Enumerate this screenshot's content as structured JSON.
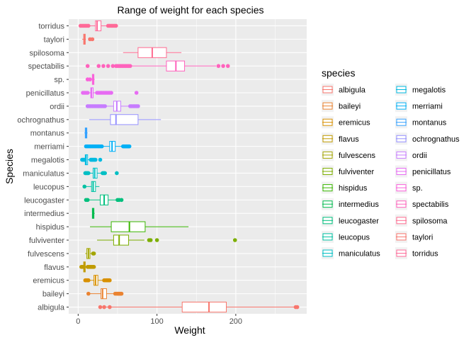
{
  "chart_data": {
    "type": "boxplot",
    "title": "Range of weight for each species",
    "xlabel": "Weight",
    "ylabel": "Species",
    "xlim": [
      -12,
      290
    ],
    "xticks": [
      0,
      100,
      200
    ],
    "grid": true,
    "legend_title": "species",
    "legend_placement": "right",
    "categories": [
      "albigula",
      "baileyi",
      "eremicus",
      "flavus",
      "fulvescens",
      "fulviventer",
      "hispidus",
      "intermedius",
      "leucogaster",
      "leucopus",
      "maniculatus",
      "megalotis",
      "merriami",
      "montanus",
      "ochrognathus",
      "ordii",
      "penicillatus",
      "sp.",
      "spectabilis",
      "spilosoma",
      "taylori",
      "torridus"
    ],
    "colors": [
      "#F8766D",
      "#EA8331",
      "#D89000",
      "#C09B00",
      "#A3A500",
      "#7CAE00",
      "#39B600",
      "#00BB4E",
      "#00BF7D",
      "#00C1A3",
      "#00BFC4",
      "#00BAE0",
      "#00B0F6",
      "#35A2FF",
      "#9590FF",
      "#C77CFF",
      "#E76BF3",
      "#FA62DB",
      "#FF62BC",
      "#FF6C91",
      "#F8766D",
      "#FF6A98"
    ],
    "boxes": [
      {
        "species": "albigula",
        "whisker_low": 30,
        "q1": 132,
        "median": 166,
        "q3": 188,
        "whisker_high": 275,
        "outliers": [
          28,
          33,
          40,
          276,
          278
        ]
      },
      {
        "species": "baileyi",
        "whisker_low": 13,
        "q1": 29,
        "median": 31,
        "q3": 36,
        "whisker_high": 48,
        "outliers": [
          13,
          47,
          49,
          50,
          51,
          52,
          53,
          54,
          55
        ]
      },
      {
        "species": "eremicus",
        "whisker_low": 9,
        "q1": 20,
        "median": 22,
        "q3": 25,
        "whisker_high": 33,
        "outliers": [
          9,
          10,
          11,
          12,
          13,
          33,
          35,
          36,
          37,
          38,
          39,
          40
        ]
      },
      {
        "species": "flavus",
        "whisker_low": 4,
        "q1": 7,
        "median": 8,
        "q3": 9,
        "whisker_high": 12,
        "outliers": [
          4,
          5,
          6,
          12,
          13,
          14,
          15,
          16,
          17,
          18,
          19,
          20
        ]
      },
      {
        "species": "fulvescens",
        "whisker_low": 9,
        "q1": 11,
        "median": 13,
        "q3": 15,
        "whisker_high": 17,
        "outliers": [
          19,
          20
        ]
      },
      {
        "species": "fulviventer",
        "whisker_low": 24,
        "q1": 45,
        "median": 52,
        "q3": 64,
        "whisker_high": 84,
        "outliers": [
          90,
          92,
          100,
          199
        ]
      },
      {
        "species": "hispidus",
        "whisker_low": 15,
        "q1": 42,
        "median": 65,
        "q3": 85,
        "whisker_high": 140,
        "outliers": []
      },
      {
        "species": "intermedius",
        "whisker_low": 18,
        "q1": 18,
        "median": 19,
        "q3": 20,
        "whisker_high": 21,
        "outliers": []
      },
      {
        "species": "leucogaster",
        "whisker_low": 11,
        "q1": 28,
        "median": 33,
        "q3": 38,
        "whisker_high": 49,
        "outliers": [
          10,
          12,
          50,
          52,
          55
        ]
      },
      {
        "species": "leucopus",
        "whisker_low": 8,
        "q1": 17,
        "median": 19,
        "q3": 22,
        "whisker_high": 27,
        "outliers": [
          8
        ]
      },
      {
        "species": "maniculatus",
        "whisker_low": 13,
        "q1": 19,
        "median": 21,
        "q3": 24,
        "whisker_high": 31,
        "outliers": [
          9,
          10,
          11,
          12,
          13,
          31,
          32,
          33,
          34,
          49
        ]
      },
      {
        "species": "megalotis",
        "whisker_low": 5,
        "q1": 9,
        "median": 10,
        "q3": 12,
        "whisker_high": 16,
        "outliers": [
          5,
          6,
          7,
          8,
          16,
          17,
          18,
          19,
          20,
          21,
          22,
          28
        ]
      },
      {
        "species": "merriami",
        "whisker_low": 30,
        "q1": 40,
        "median": 43,
        "q3": 47,
        "whisker_high": 56,
        "outliers": [
          10,
          12,
          14,
          16,
          18,
          20,
          22,
          24,
          26,
          28,
          30,
          57,
          58,
          59,
          60,
          61,
          62,
          63,
          64,
          65
        ]
      },
      {
        "species": "montanus",
        "whisker_low": 8,
        "q1": 9,
        "median": 10,
        "q3": 11,
        "whisker_high": 12,
        "outliers": []
      },
      {
        "species": "ochrognathus",
        "whisker_low": 14,
        "q1": 41,
        "median": 48,
        "q3": 76,
        "whisker_high": 105,
        "outliers": []
      },
      {
        "species": "ordii",
        "whisker_low": 34,
        "q1": 45,
        "median": 49,
        "q3": 54,
        "whisker_high": 66,
        "outliers": [
          12,
          14,
          16,
          18,
          20,
          22,
          24,
          26,
          28,
          30,
          32,
          34,
          66,
          68,
          70,
          72,
          74,
          76
        ]
      },
      {
        "species": "penicillatus",
        "whisker_low": 13,
        "q1": 16,
        "median": 17,
        "q3": 19,
        "whisker_high": 23,
        "outliers": [
          6,
          8,
          10,
          12,
          24,
          26,
          28,
          30,
          32,
          34,
          36,
          38,
          40,
          42,
          74
        ]
      },
      {
        "species": "sp.",
        "whisker_low": 15,
        "q1": 18,
        "median": 19,
        "q3": 20,
        "whisker_high": 21,
        "outliers": [
          12,
          15
        ]
      },
      {
        "species": "spectabilis",
        "whisker_low": 63,
        "q1": 112,
        "median": 124,
        "q3": 135,
        "whisker_high": 175,
        "outliers": [
          12,
          26,
          32,
          38,
          44,
          48,
          50,
          52,
          54,
          56,
          58,
          60,
          62,
          64,
          66,
          178,
          184,
          190
        ]
      },
      {
        "species": "spilosoma",
        "whisker_low": 57,
        "q1": 76,
        "median": 94,
        "q3": 112,
        "whisker_high": 131,
        "outliers": []
      },
      {
        "species": "taylori",
        "whisker_low": 5,
        "q1": 7,
        "median": 8,
        "q3": 9,
        "whisker_high": 10,
        "outliers": [
          15,
          18
        ]
      },
      {
        "species": "torridus",
        "whisker_low": 13,
        "q1": 22,
        "median": 24,
        "q3": 29,
        "whisker_high": 38,
        "outliers": [
          3,
          5,
          7,
          9,
          11,
          13,
          38,
          40,
          42,
          44,
          46,
          48
        ]
      }
    ]
  }
}
